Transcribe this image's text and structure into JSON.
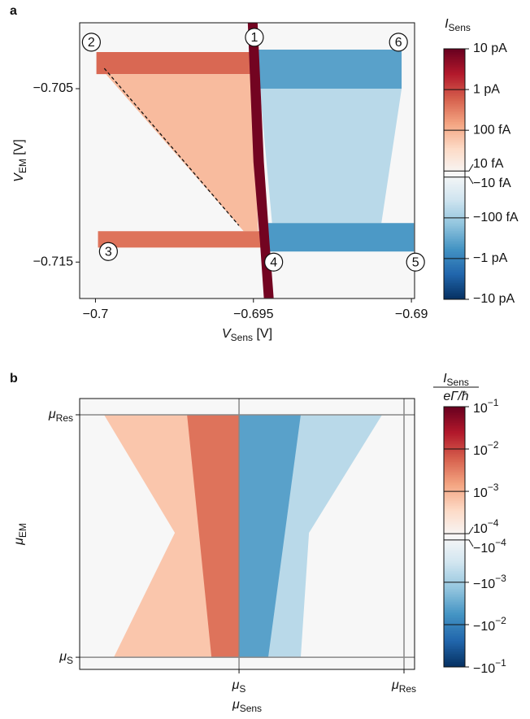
{
  "chart_data": [
    {
      "type": "heatmap",
      "panel": "a",
      "xlabel": [
        "V",
        "Sens",
        " [V]"
      ],
      "ylabel": [
        "V",
        "EM",
        " [V]"
      ],
      "xlim": [
        -0.7005,
        -0.6899
      ],
      "ylim": [
        -0.7171,
        -0.7012
      ],
      "xticks": [
        {
          "value": -0.7,
          "label": "−0.7"
        },
        {
          "value": -0.695,
          "label": "−0.695"
        },
        {
          "value": -0.69,
          "label": "−0.69"
        }
      ],
      "yticks": [
        {
          "value": -0.705,
          "label": "−0.705"
        },
        {
          "value": -0.715,
          "label": "−0.715"
        }
      ],
      "grid": false,
      "colormap": "RdBu_r",
      "colorbar": {
        "title": [
          "I",
          "Sens"
        ],
        "scale": "symlog",
        "linthresh": 0.01,
        "clim": [
          -10,
          10
        ],
        "ticks": [
          {
            "value": 10,
            "label": "10 pA"
          },
          {
            "value": 1,
            "label": "1 pA"
          },
          {
            "value": 0.1,
            "label": "100 fA"
          },
          {
            "value": 0.01,
            "label": "10 fA"
          },
          {
            "value": -0.01,
            "label": "−10 fA"
          },
          {
            "value": -0.1,
            "label": "−100 fA"
          },
          {
            "value": -1,
            "label": "−1 pA"
          },
          {
            "value": -10,
            "label": "−10 pA"
          }
        ]
      },
      "regions": [
        {
          "x": [
            -0.69997,
            -0.69505,
            -0.69505,
            -0.69997
          ],
          "y": [
            -0.70289,
            -0.70289,
            -0.70416,
            -0.70416
          ],
          "value": 0.5
        },
        {
          "x": [
            -0.69967,
            -0.69505,
            -0.69485,
            -0.69531
          ],
          "y": [
            -0.70416,
            -0.70416,
            -0.71322,
            -0.71322
          ],
          "value": 0.08
        },
        {
          "x": [
            -0.69992,
            -0.69467,
            -0.69467,
            -0.69992
          ],
          "y": [
            -0.71322,
            -0.71322,
            -0.71416,
            -0.71416
          ],
          "value": 0.4
        },
        {
          "x": [
            -0.69485,
            -0.69031,
            -0.69031,
            -0.69485
          ],
          "y": [
            -0.70275,
            -0.70275,
            -0.705,
            -0.705
          ],
          "value": -0.4
        },
        {
          "x": [
            -0.6948,
            -0.69031,
            -0.69095,
            -0.69441
          ],
          "y": [
            -0.705,
            -0.705,
            -0.71275,
            -0.71275
          ],
          "value": -0.06
        },
        {
          "x": [
            -0.69454,
            -0.68992,
            -0.68992,
            -0.69454
          ],
          "y": [
            -0.71275,
            -0.71275,
            -0.71439,
            -0.71439
          ],
          "value": -0.5
        },
        {
          "x": [
            -0.69518,
            -0.695,
            -0.69479,
            -0.69467,
            -0.69436,
            -0.69449,
            -0.69467,
            -0.69487
          ],
          "y": [
            -0.70115,
            -0.70923,
            -0.71392,
            -0.71707,
            -0.71707,
            -0.71392,
            -0.70923,
            -0.70115
          ],
          "value": 8
        }
      ],
      "annotations": [
        {
          "text": "1",
          "x": -0.69497,
          "y": -0.70204
        },
        {
          "text": "2",
          "x": -0.70013,
          "y": -0.70232
        },
        {
          "text": "3",
          "x": -0.69959,
          "y": -0.71439
        },
        {
          "text": "4",
          "x": -0.69436,
          "y": -0.715
        },
        {
          "text": "5",
          "x": -0.68987,
          "y": -0.715
        },
        {
          "text": "6",
          "x": -0.69041,
          "y": -0.70232
        }
      ],
      "dashed_line": {
        "x": [
          -0.69972,
          -0.69546
        ],
        "y": [
          -0.70383,
          -0.71289
        ]
      }
    },
    {
      "type": "heatmap",
      "panel": "b",
      "xlabel": [
        "μ",
        "Sens"
      ],
      "ylabel": [
        "μ",
        "EM"
      ],
      "xlim": [
        -0.966,
        1.064
      ],
      "ylim": [
        -0.05,
        1.067
      ],
      "xticks": [
        {
          "value": 0,
          "label": [
            "μ",
            "S"
          ]
        },
        {
          "value": 1,
          "label": [
            "μ",
            "Res"
          ]
        }
      ],
      "yticks": [
        {
          "value": 1,
          "label": [
            "μ",
            "Res"
          ]
        },
        {
          "value": 0,
          "label": [
            "μ",
            "S"
          ]
        }
      ],
      "grid": true,
      "colormap": "RdBu_r",
      "colorbar": {
        "title": [
          "I",
          "Sens"
        ],
        "title_denominator": "eΓ/ħ",
        "scale": "symlog",
        "linthresh": 0.0001,
        "clim": [
          -0.1,
          0.1
        ],
        "ticks": [
          {
            "value": 0.1,
            "label": [
              "10",
              "−1"
            ]
          },
          {
            "value": 0.01,
            "label": [
              "10",
              "−2"
            ]
          },
          {
            "value": 0.001,
            "label": [
              "10",
              "−3"
            ]
          },
          {
            "value": 0.0001,
            "label": [
              "10",
              "−4"
            ]
          },
          {
            "value": -0.0001,
            "label": [
              "−10",
              "−4"
            ]
          },
          {
            "value": -0.001,
            "label": [
              "−10",
              "−3"
            ]
          },
          {
            "value": -0.01,
            "label": [
              "−10",
              "−2"
            ]
          },
          {
            "value": -0.1,
            "label": [
              "−10",
              "−1"
            ]
          }
        ]
      },
      "regions": [
        {
          "x": [
            -0.818,
            0,
            0,
            -0.759,
            -0.389
          ],
          "y": [
            1,
            1,
            0,
            0,
            0.513
          ],
          "value": 0.0006
        },
        {
          "x": [
            -0.315,
            0,
            0,
            -0.167
          ],
          "y": [
            1,
            1,
            0,
            0
          ],
          "value": 0.004
        },
        {
          "x": [
            0,
            0.867,
            0.424,
            0.374,
            0
          ],
          "y": [
            1,
            1,
            0.513,
            0,
            0
          ],
          "value": -0.0006
        },
        {
          "x": [
            0,
            0.374,
            0.177,
            0
          ],
          "y": [
            1,
            1,
            0,
            0
          ],
          "value": -0.004
        }
      ]
    }
  ]
}
